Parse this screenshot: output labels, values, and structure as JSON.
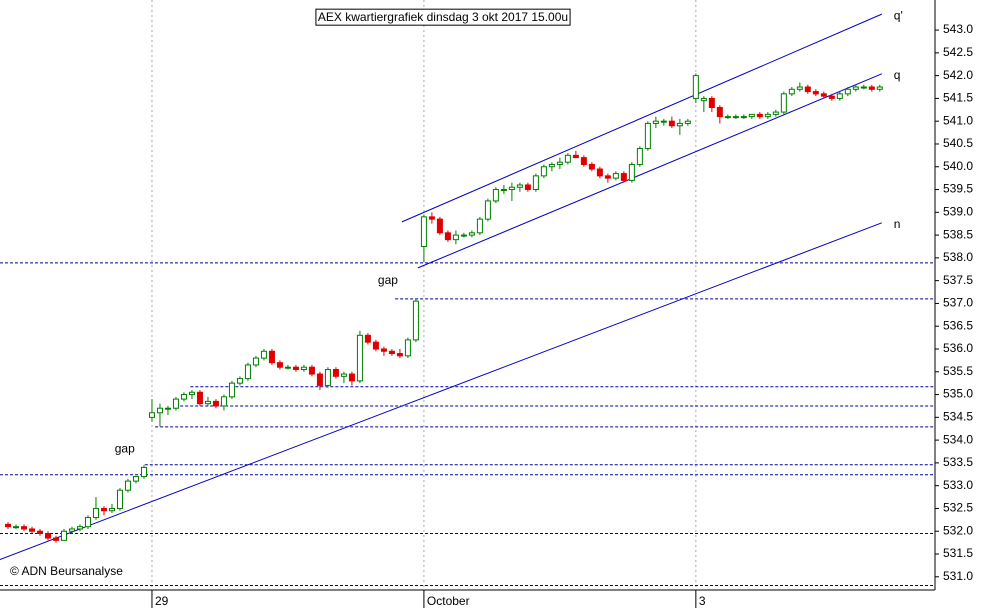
{
  "chart_data": {
    "type": "candlestick",
    "title": "AEX kwartiergrafiek dinsdag 3 okt 2017 15.00u",
    "credit": "© ADN Beursanalyse",
    "up_color": "#008000",
    "down_color": "#e00000",
    "line_color": "#0000c0",
    "xlim": [
      -1,
      115.9
    ],
    "ylim": [
      530.71,
      543.66
    ],
    "xticks": [
      {
        "value": 18,
        "label": "29"
      },
      {
        "value": 52,
        "label": "October"
      },
      {
        "value": 86,
        "label": "3"
      }
    ],
    "yticks": [
      {
        "value": 531,
        "label": "531.0"
      },
      531.5,
      {
        "value": 532,
        "label": "532.0"
      },
      532.5,
      {
        "value": 533,
        "label": "533.0"
      },
      533.5,
      {
        "value": 534,
        "label": "534.0"
      },
      534.5,
      {
        "value": 535,
        "label": "535.0"
      },
      535.5,
      {
        "value": 536,
        "label": "536.0"
      },
      536.5,
      {
        "value": 537,
        "label": "537.0"
      },
      537.5,
      {
        "value": 538,
        "label": "538.0"
      },
      538.5,
      {
        "value": 539,
        "label": "539.0"
      },
      539.5,
      {
        "value": 540,
        "label": "540.0"
      },
      540.5,
      {
        "value": 541,
        "label": "541.0"
      },
      541.5,
      {
        "value": 542,
        "label": "542.0"
      },
      542.5,
      {
        "value": 543,
        "label": "543.0"
      }
    ],
    "ohlc": [
      [
        532.15,
        532.2,
        532.05,
        532.1
      ],
      [
        532.1,
        532.15,
        532.05,
        532.1
      ],
      [
        532.1,
        532.15,
        532.0,
        532.05
      ],
      [
        532.05,
        532.1,
        531.95,
        532.0
      ],
      [
        532.0,
        532.05,
        531.9,
        531.95
      ],
      [
        531.95,
        532.0,
        531.8,
        531.85
      ],
      [
        531.85,
        531.9,
        531.75,
        531.8
      ],
      [
        531.8,
        532.05,
        531.8,
        532.0
      ],
      [
        532.0,
        532.1,
        531.95,
        532.05
      ],
      [
        532.05,
        532.15,
        532.0,
        532.1
      ],
      [
        532.1,
        532.35,
        532.05,
        532.3
      ],
      [
        532.3,
        532.75,
        532.25,
        532.5
      ],
      [
        532.5,
        532.55,
        532.35,
        532.45
      ],
      [
        532.45,
        532.6,
        532.4,
        532.5
      ],
      [
        532.5,
        532.95,
        532.45,
        532.9
      ],
      [
        532.9,
        533.15,
        532.85,
        533.1
      ],
      [
        533.1,
        533.2,
        533.05,
        533.2
      ],
      [
        533.2,
        533.45,
        533.15,
        533.4
      ],
      [
        534.5,
        534.9,
        534.4,
        534.6
      ],
      [
        534.6,
        534.8,
        534.3,
        534.7
      ],
      [
        534.7,
        534.75,
        534.55,
        534.7
      ],
      [
        534.7,
        534.95,
        534.65,
        534.9
      ],
      [
        534.9,
        535.05,
        534.85,
        535.0
      ],
      [
        535.0,
        535.1,
        534.9,
        535.05
      ],
      [
        535.05,
        535.1,
        534.75,
        534.8
      ],
      [
        534.8,
        534.95,
        534.75,
        534.85
      ],
      [
        534.85,
        534.9,
        534.7,
        534.75
      ],
      [
        534.75,
        535.0,
        534.65,
        534.95
      ],
      [
        534.95,
        535.3,
        534.9,
        535.25
      ],
      [
        535.25,
        535.4,
        535.2,
        535.35
      ],
      [
        535.35,
        535.7,
        535.3,
        535.65
      ],
      [
        535.65,
        535.85,
        535.6,
        535.8
      ],
      [
        535.8,
        536.0,
        535.75,
        535.95
      ],
      [
        535.95,
        536.0,
        535.65,
        535.7
      ],
      [
        535.7,
        535.75,
        535.55,
        535.6
      ],
      [
        535.6,
        535.65,
        535.55,
        535.6
      ],
      [
        535.6,
        535.65,
        535.5,
        535.55
      ],
      [
        535.55,
        535.65,
        535.5,
        535.6
      ],
      [
        535.6,
        535.65,
        535.4,
        535.45
      ],
      [
        535.45,
        535.5,
        535.1,
        535.2
      ],
      [
        535.2,
        535.6,
        535.15,
        535.55
      ],
      [
        535.55,
        535.6,
        535.35,
        535.4
      ],
      [
        535.4,
        535.5,
        535.25,
        535.45
      ],
      [
        535.45,
        535.5,
        535.2,
        535.3
      ],
      [
        535.3,
        536.4,
        535.25,
        536.3
      ],
      [
        536.3,
        536.35,
        536.1,
        536.15
      ],
      [
        536.15,
        536.2,
        535.95,
        536.0
      ],
      [
        536.0,
        536.05,
        535.85,
        535.95
      ],
      [
        535.95,
        536.0,
        535.85,
        535.9
      ],
      [
        535.9,
        536.0,
        535.8,
        535.85
      ],
      [
        535.85,
        536.25,
        535.8,
        536.2
      ],
      [
        536.2,
        537.1,
        536.15,
        537.05
      ],
      [
        538.25,
        538.95,
        537.9,
        538.9
      ],
      [
        538.9,
        539.0,
        538.75,
        538.85
      ],
      [
        538.85,
        538.9,
        538.5,
        538.55
      ],
      [
        538.55,
        538.6,
        538.35,
        538.4
      ],
      [
        538.4,
        538.6,
        538.3,
        538.5
      ],
      [
        538.5,
        538.55,
        538.45,
        538.5
      ],
      [
        538.5,
        538.6,
        538.45,
        538.55
      ],
      [
        538.55,
        538.9,
        538.5,
        538.85
      ],
      [
        538.85,
        539.3,
        538.8,
        539.25
      ],
      [
        539.25,
        539.55,
        539.2,
        539.5
      ],
      [
        539.5,
        539.6,
        539.4,
        539.5
      ],
      [
        539.5,
        539.65,
        539.25,
        539.55
      ],
      [
        539.55,
        539.65,
        539.45,
        539.6
      ],
      [
        539.6,
        539.65,
        539.45,
        539.5
      ],
      [
        539.5,
        539.85,
        539.45,
        539.8
      ],
      [
        539.8,
        540.05,
        539.75,
        540.0
      ],
      [
        540.0,
        540.1,
        539.9,
        540.05
      ],
      [
        540.05,
        540.2,
        539.95,
        540.1
      ],
      [
        540.1,
        540.3,
        540.05,
        540.25
      ],
      [
        540.25,
        540.35,
        540.2,
        540.2
      ],
      [
        540.2,
        540.25,
        540.0,
        540.05
      ],
      [
        540.05,
        540.1,
        539.9,
        539.95
      ],
      [
        539.95,
        540.0,
        539.75,
        539.8
      ],
      [
        539.8,
        539.85,
        539.65,
        539.75
      ],
      [
        539.75,
        539.9,
        539.7,
        539.85
      ],
      [
        539.85,
        539.9,
        539.65,
        539.7
      ],
      [
        539.7,
        540.1,
        539.65,
        540.05
      ],
      [
        540.05,
        540.45,
        540.0,
        540.4
      ],
      [
        540.4,
        541.0,
        540.35,
        540.95
      ],
      [
        540.95,
        541.1,
        540.85,
        541.0
      ],
      [
        541.0,
        541.05,
        540.9,
        541.0
      ],
      [
        541.0,
        541.1,
        540.85,
        540.9
      ],
      [
        540.9,
        541.05,
        540.7,
        540.95
      ],
      [
        540.95,
        541.05,
        540.9,
        541.0
      ],
      [
        541.5,
        542.05,
        541.4,
        542.0
      ],
      [
        541.45,
        541.55,
        541.2,
        541.5
      ],
      [
        541.5,
        541.55,
        541.2,
        541.3
      ],
      [
        541.3,
        541.35,
        540.95,
        541.1
      ],
      [
        541.1,
        541.15,
        541.05,
        541.1
      ],
      [
        541.1,
        541.15,
        541.05,
        541.1
      ],
      [
        541.1,
        541.15,
        541.05,
        541.1
      ],
      [
        541.1,
        541.15,
        541.05,
        541.15
      ],
      [
        541.15,
        541.2,
        541.05,
        541.1
      ],
      [
        541.1,
        541.2,
        541.05,
        541.15
      ],
      [
        541.15,
        541.25,
        541.1,
        541.2
      ],
      [
        541.2,
        541.65,
        541.15,
        541.6
      ],
      [
        541.6,
        541.75,
        541.55,
        541.7
      ],
      [
        541.7,
        541.85,
        541.65,
        541.75
      ],
      [
        541.75,
        541.8,
        541.6,
        541.65
      ],
      [
        541.65,
        541.7,
        541.55,
        541.6
      ],
      [
        541.6,
        541.65,
        541.5,
        541.55
      ],
      [
        541.55,
        541.6,
        541.45,
        541.5
      ],
      [
        541.5,
        541.65,
        541.45,
        541.6
      ],
      [
        541.6,
        541.75,
        541.55,
        541.7
      ],
      [
        541.7,
        541.8,
        541.65,
        541.75
      ],
      [
        541.75,
        541.8,
        541.7,
        541.75
      ],
      [
        541.75,
        541.8,
        541.65,
        541.7
      ],
      [
        541.7,
        541.8,
        541.65,
        541.75
      ]
    ],
    "trendlines": [
      {
        "name": "q'",
        "x": [
          49.25,
          109.25
        ],
        "y": [
          538.79,
          543.35
        ]
      },
      {
        "name": "q",
        "x": [
          51.25,
          109.25
        ],
        "y": [
          537.78,
          542.04
        ]
      },
      {
        "name": "n",
        "x": [
          -1,
          109.25
        ],
        "y": [
          531.38,
          538.77
        ]
      }
    ],
    "hlines": [
      {
        "y": 537.89,
        "x0": -1
      },
      {
        "y": 537.1,
        "x0": 48.4
      },
      {
        "y": 535.17,
        "x0": 22.8
      },
      {
        "y": 534.75,
        "x0": 20.9
      },
      {
        "y": 534.29,
        "x0": 18.4
      },
      {
        "y": 533.46,
        "x0": 17.1
      },
      {
        "y": 533.24,
        "x0": -1
      },
      {
        "y": 531.95,
        "x0": -1
      },
      {
        "y": 530.81,
        "x0": -1
      }
    ],
    "annotations": [
      {
        "text": "gap",
        "x": 47.5,
        "y": 537.5
      },
      {
        "text": "gap",
        "x": 14.6,
        "y": 533.8
      }
    ]
  }
}
